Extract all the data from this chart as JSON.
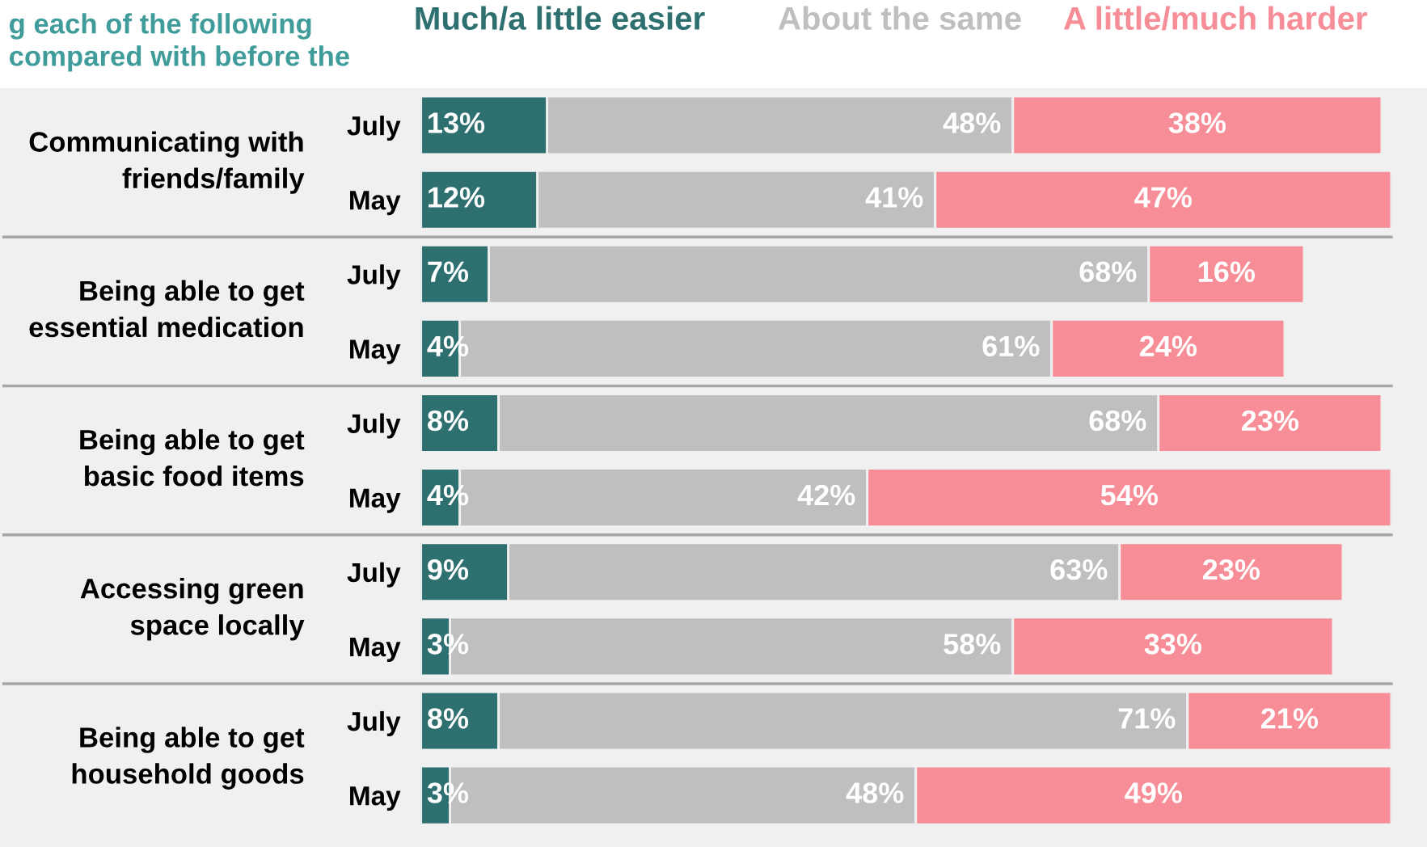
{
  "chart_data": {
    "type": "bar",
    "orientation": "horizontal",
    "stacked": true,
    "title": "g each of the following\ncompared with before the",
    "categories": [
      "July",
      "May",
      "July",
      "May",
      "July",
      "May",
      "July",
      "May",
      "July",
      "May"
    ],
    "series": [
      {
        "name": "Much/a little easier",
        "color": "#2e7070",
        "values": [
          13,
          12,
          7,
          4,
          8,
          4,
          9,
          3,
          8,
          3
        ],
        "value_labels": [
          "13%",
          "12%",
          "7%",
          "4%",
          "8%",
          "4%",
          "9%",
          "3%",
          "8%",
          "3%"
        ]
      },
      {
        "name": "About the same",
        "color": "#bfbfbf",
        "values": [
          48,
          41,
          68,
          61,
          68,
          42,
          63,
          58,
          71,
          48
        ],
        "value_labels": [
          "48%",
          "41%",
          "68%",
          "61%",
          "68%",
          "42%",
          "63%",
          "58%",
          "71%",
          "48%"
        ]
      },
      {
        "name": "A little/much harder",
        "color": "#f78d96",
        "values": [
          38,
          47,
          16,
          24,
          23,
          54,
          23,
          33,
          21,
          49
        ],
        "value_labels": [
          "38%",
          "47%",
          "16%",
          "24%",
          "23%",
          "54%",
          "23%",
          "33%",
          "21%",
          "49%"
        ]
      }
    ],
    "annotations": [
      "Communicating with\nfriends/family",
      "Being able to get\nessential medication",
      "Being able to get\nbasic food items",
      "Accessing green\nspace locally",
      "Being able to get\nhousehold goods"
    ],
    "legend": "top",
    "grid": false
  }
}
